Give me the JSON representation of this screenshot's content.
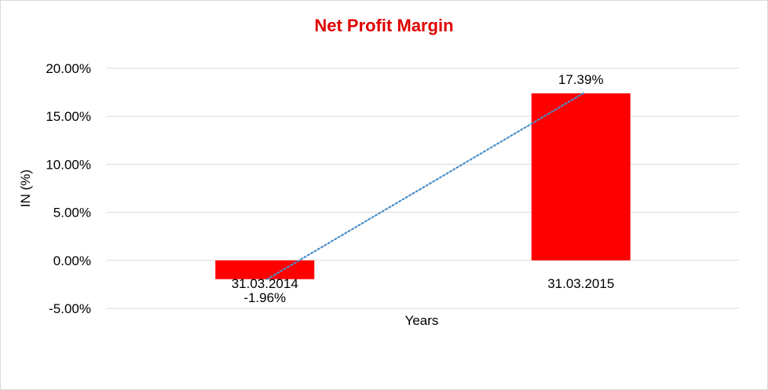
{
  "chart_data": {
    "type": "bar",
    "title": "Net Profit Margin",
    "xlabel": "Years",
    "ylabel": "IN (%)",
    "categories": [
      "31.03.2014",
      "31.03.2015"
    ],
    "values": [
      -1.96,
      17.39
    ],
    "data_labels": [
      "-1.96%",
      "17.39%"
    ],
    "ylim": [
      -5,
      20
    ],
    "yticks": [
      20,
      15,
      10,
      5,
      0,
      -5
    ],
    "ytick_labels": [
      "20.00%",
      "15.00%",
      "10.00%",
      "5.00%",
      "0.00%",
      "-5.00%"
    ],
    "grid": true,
    "legend": "none",
    "trendline": "linear, dotted",
    "colors": {
      "bar": "#ff0000",
      "title": "#e00000",
      "trendline": "#4a8ec8",
      "grid": "#d9d9d9"
    }
  }
}
